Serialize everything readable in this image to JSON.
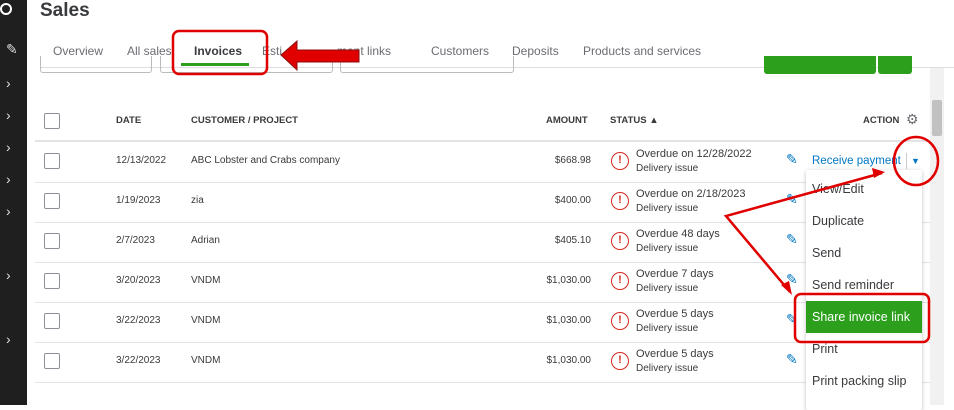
{
  "page": {
    "title": "Sales"
  },
  "tabs": [
    "Overview",
    "All sales",
    "Invoices",
    "Estimates",
    "Payment links",
    "Customers",
    "Deposits",
    "Products and services"
  ],
  "tabs_visible": [
    "Overview",
    "All sales",
    "Invoices",
    "Esti",
    "ment links",
    "Customers",
    "Deposits",
    "Products and services"
  ],
  "active_tab": "Invoices",
  "table": {
    "headers": {
      "date": "DATE",
      "customer": "CUSTOMER / PROJECT",
      "amount": "AMOUNT",
      "status": "STATUS ▲",
      "action": "ACTION"
    },
    "rows": [
      {
        "date": "12/13/2022",
        "customer": "ABC Lobster and Crabs company",
        "amount": "$668.98",
        "status": "Overdue on 12/28/2022",
        "sub": "Delivery issue"
      },
      {
        "date": "1/19/2023",
        "customer": "zia",
        "amount": "$400.00",
        "status": "Overdue on 2/18/2023",
        "sub": "Delivery issue"
      },
      {
        "date": "2/7/2023",
        "customer": "Adrian",
        "amount": "$405.10",
        "status": "Overdue 48 days",
        "sub": "Delivery issue"
      },
      {
        "date": "3/20/2023",
        "customer": "VNDM",
        "amount": "$1,030.00",
        "status": "Overdue 7 days",
        "sub": "Delivery issue"
      },
      {
        "date": "3/22/2023",
        "customer": "VNDM",
        "amount": "$1,030.00",
        "status": "Overdue 5 days",
        "sub": "Delivery issue"
      },
      {
        "date": "3/22/2023",
        "customer": "VNDM",
        "amount": "$1,030.00",
        "status": "Overdue 5 days",
        "sub": "Delivery issue"
      }
    ]
  },
  "action": {
    "primary": "Receive payment",
    "menu": [
      "View/Edit",
      "Duplicate",
      "Send",
      "Send reminder",
      "Share invoice link",
      "Print",
      "Print packing slip"
    ],
    "highlighted": "Share invoice link"
  },
  "colors": {
    "accent": "#2ca01c",
    "link": "#0077c5",
    "error": "#d52b1e",
    "annotation": "#e00000"
  }
}
